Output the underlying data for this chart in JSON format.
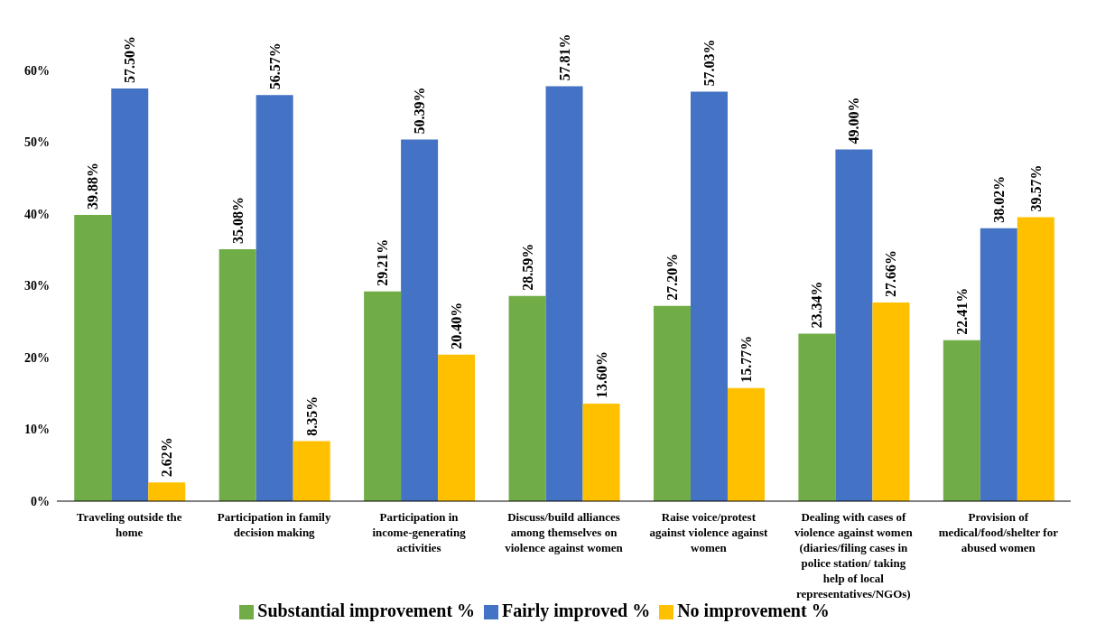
{
  "chart_data": {
    "type": "bar",
    "categories": [
      "Traveling outside the home",
      "Participation in family decision making",
      "Participation in income-generating activities",
      "Discuss/build alliances among themselves on violence against women",
      "Raise voice/protest against violence against women",
      "Dealing with cases of violence against women (diaries/filing cases in police station/ taking help of local representatives/NGOs)",
      "Provision of medical/food/shelter for abused women"
    ],
    "series": [
      {
        "name": "Substantial improvement %",
        "color": "#70ad47",
        "values": [
          39.88,
          35.08,
          29.21,
          28.59,
          27.2,
          23.34,
          22.41
        ],
        "value_labels": [
          "39.88%",
          "35.08%",
          "29.21%",
          "28.59%",
          "27.20%",
          "23.34%",
          "22.41%"
        ]
      },
      {
        "name": "Fairly improved %",
        "color": "#4472c4",
        "values": [
          57.5,
          56.57,
          50.39,
          57.81,
          57.03,
          49.0,
          38.02
        ],
        "value_labels": [
          "57.50%",
          "56.57%",
          "50.39%",
          "57.81%",
          "57.03%",
          "49.00%",
          "38.02%"
        ]
      },
      {
        "name": "No improvement %",
        "color": "#ffc000",
        "values": [
          2.62,
          8.35,
          20.4,
          13.6,
          15.77,
          27.66,
          39.57
        ],
        "value_labels": [
          "2.62%",
          "8.35%",
          "20.40%",
          "13.60%",
          "15.77%",
          "27.66%",
          "39.57%"
        ]
      }
    ],
    "ylim": [
      0,
      60
    ],
    "yticks": [
      {
        "value": 0,
        "label": "0%"
      },
      {
        "value": 10,
        "label": "10%"
      },
      {
        "value": 20,
        "label": "20%"
      },
      {
        "value": 30,
        "label": "30%"
      },
      {
        "value": 40,
        "label": "40%"
      },
      {
        "value": 50,
        "label": "50%"
      },
      {
        "value": 60,
        "label": "60%"
      }
    ],
    "legend": "bottom"
  }
}
